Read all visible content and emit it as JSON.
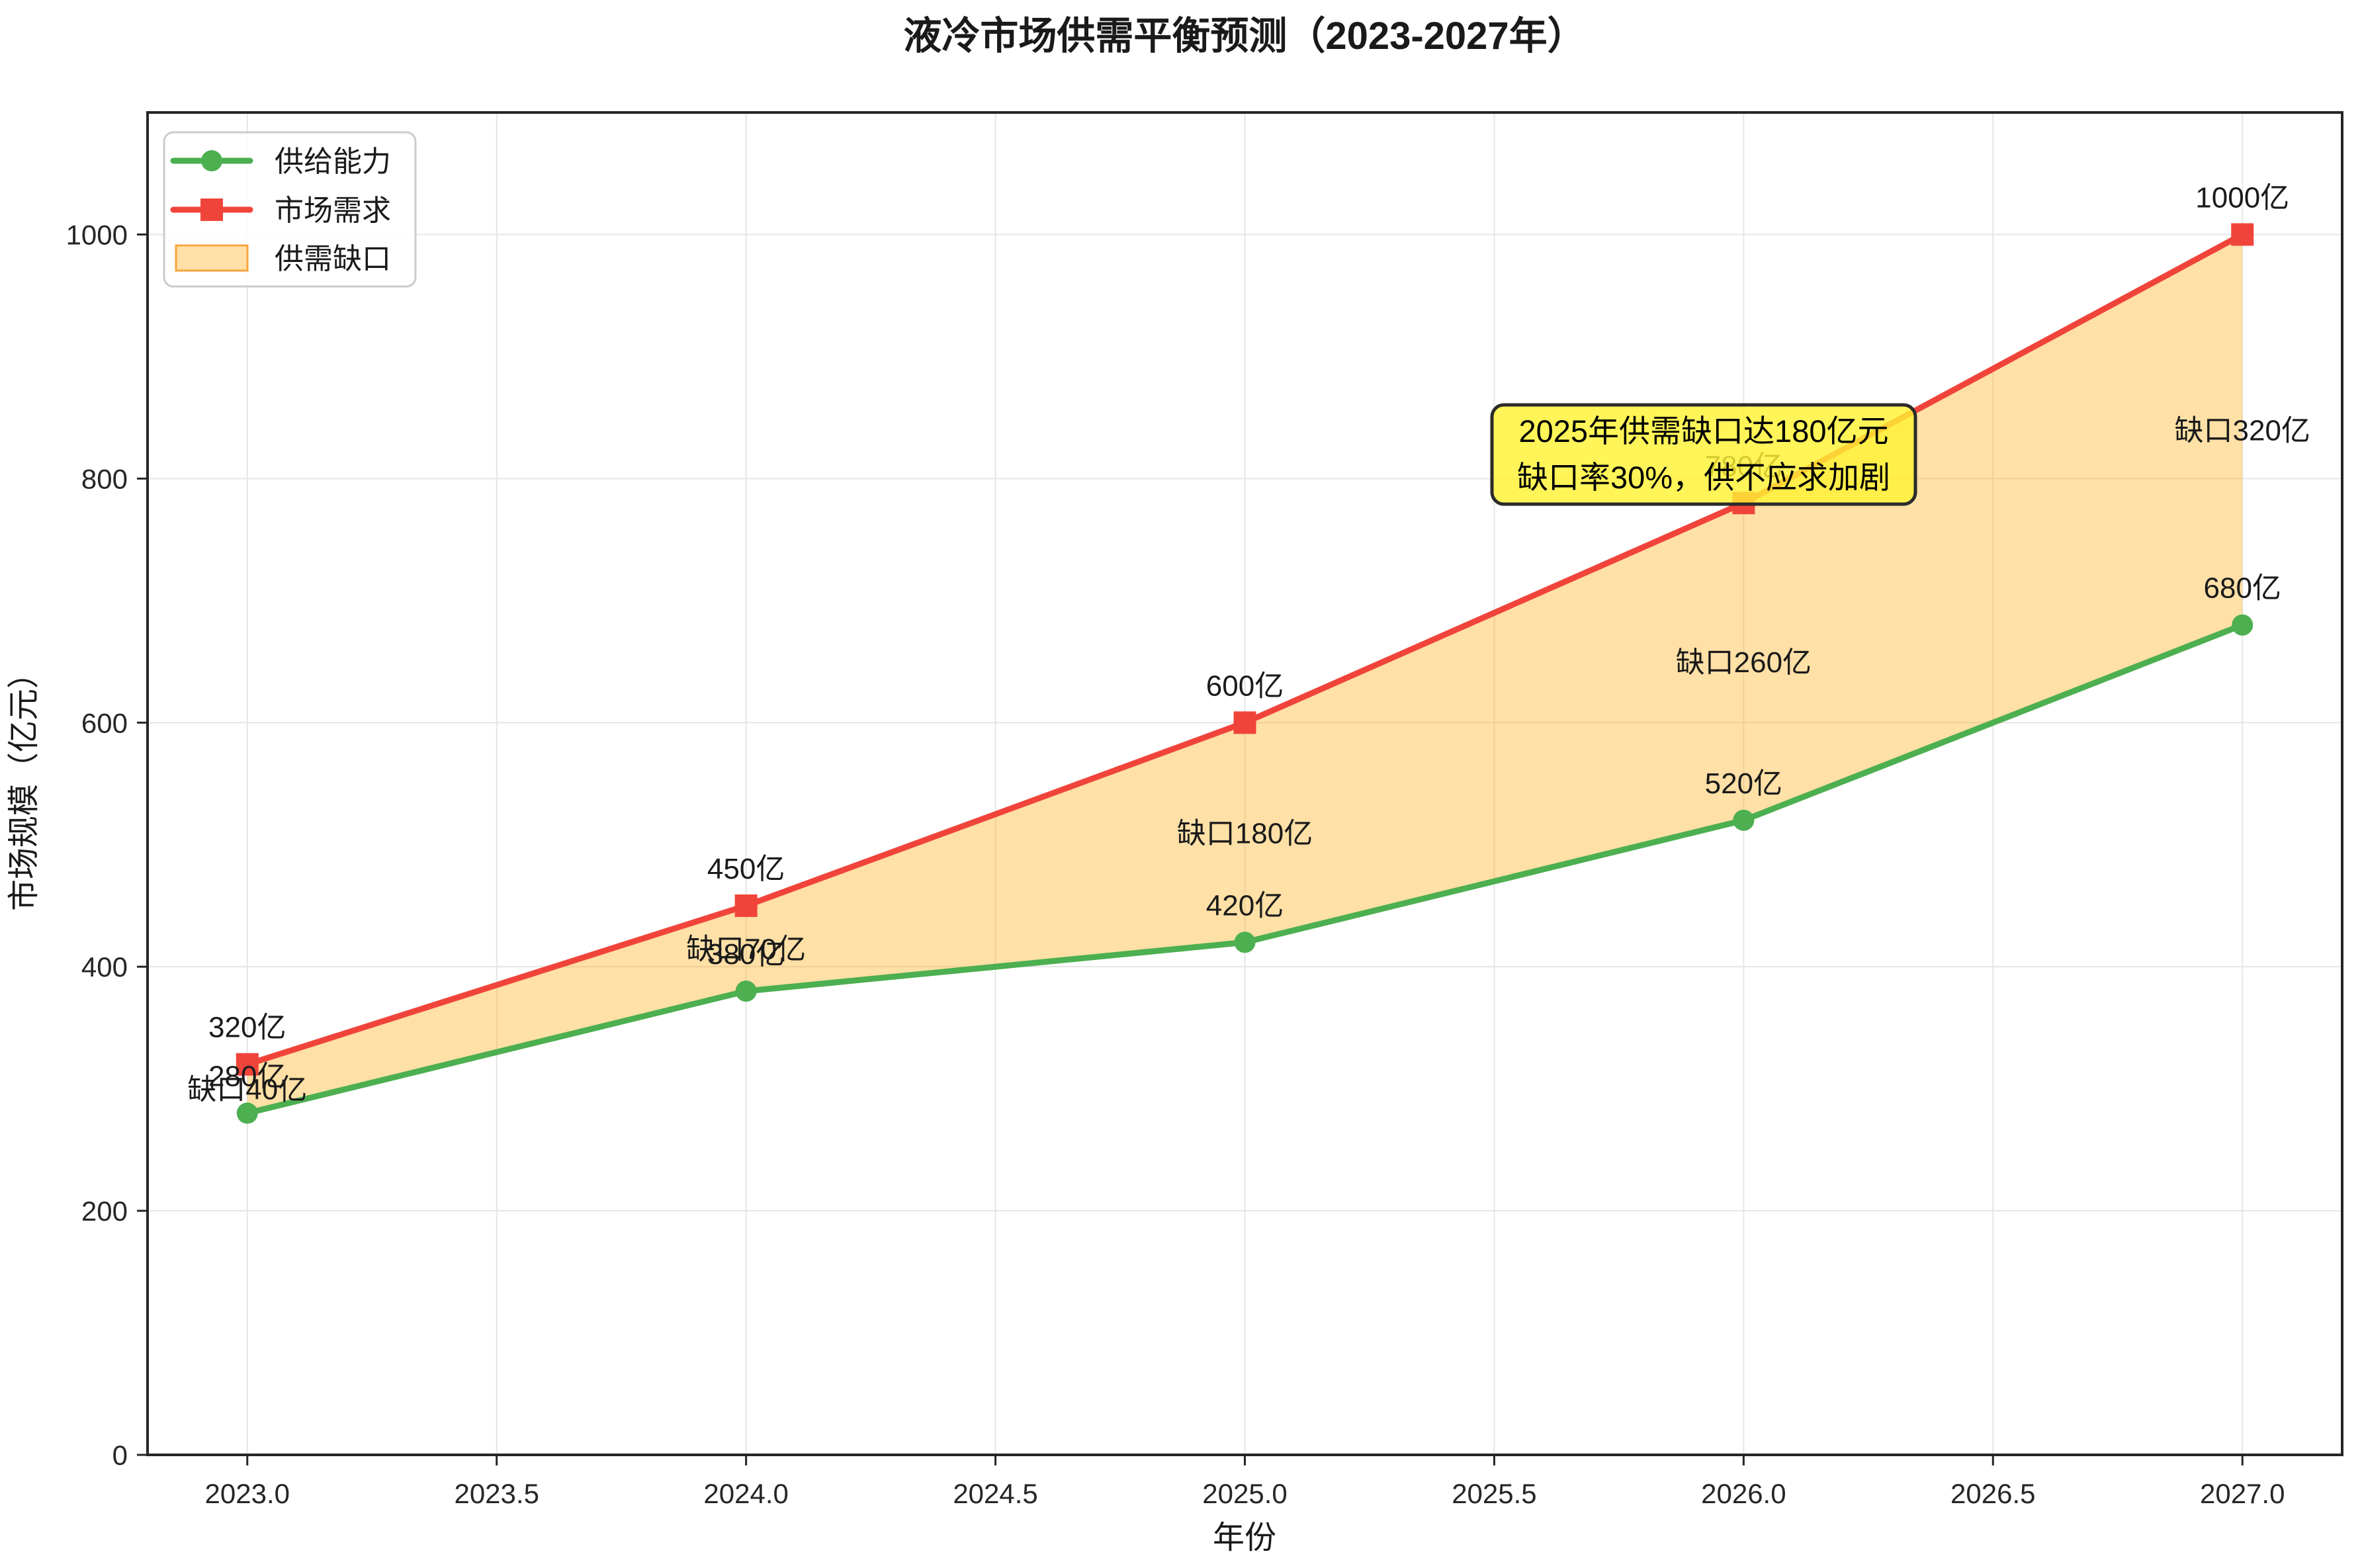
{
  "chart_data": {
    "type": "line",
    "title": "液冷市场供需平衡预测（2023-2027年）",
    "xlabel": "年份",
    "ylabel": "市场规模（亿元）",
    "x": [
      2023,
      2024,
      2025,
      2026,
      2027
    ],
    "xlim": [
      2022.8,
      2027.2
    ],
    "ylim": [
      0,
      1100
    ],
    "grid": true,
    "xticks": {
      "values": [
        2023.0,
        2023.5,
        2024.0,
        2024.5,
        2025.0,
        2025.5,
        2026.0,
        2026.5,
        2027.0
      ],
      "labels": [
        "2023.0",
        "2023.5",
        "2024.0",
        "2024.5",
        "2025.0",
        "2025.5",
        "2026.0",
        "2026.5",
        "2027.0"
      ]
    },
    "yticks": {
      "values": [
        0,
        200,
        400,
        600,
        800,
        1000
      ],
      "labels": [
        "0",
        "200",
        "400",
        "600",
        "800",
        "1000"
      ]
    },
    "series": [
      {
        "name": "供给能力",
        "color": "#4CAF50",
        "marker": "circle",
        "values": [
          280,
          380,
          420,
          520,
          680
        ],
        "point_labels": [
          "280亿",
          "380亿",
          "420亿",
          "520亿",
          "680亿"
        ]
      },
      {
        "name": "市场需求",
        "color": "#F0443B",
        "marker": "square",
        "values": [
          320,
          450,
          600,
          780,
          1000
        ],
        "point_labels": [
          "320亿",
          "450亿",
          "600亿",
          "780亿",
          "1000亿"
        ]
      }
    ],
    "gap_area": {
      "name": "供需缺口",
      "fill": "rgba(255,165,0,0.35)",
      "legend_patch_border": "#F9A43F",
      "label_color": "#FB9702",
      "gap_values": [
        40,
        70,
        180,
        260,
        320
      ],
      "labels": [
        "缺口40亿",
        "缺口70亿",
        "缺口180亿",
        "缺口260亿",
        "缺口320亿"
      ]
    },
    "legend": {
      "position": "upper left",
      "entries": [
        "供给能力",
        "市场需求",
        "供需缺口"
      ]
    },
    "annotation": {
      "lines": [
        "2025年供需缺口达180亿元",
        "缺口率30%，供不应求加剧"
      ],
      "bg": "#FFF133",
      "border": "#2B2B2B"
    }
  }
}
